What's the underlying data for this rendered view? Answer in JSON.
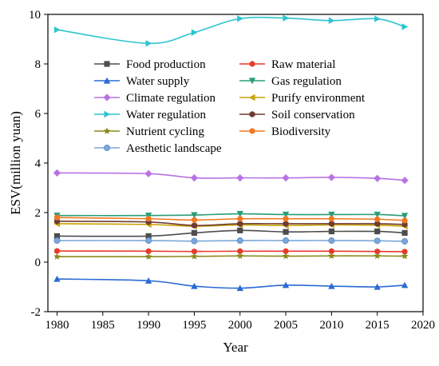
{
  "chart_data": {
    "type": "line",
    "xlabel": "Year",
    "ylabel": "ESV(million yuan)",
    "xlim": [
      1979,
      2020
    ],
    "ylim": [
      -2,
      10
    ],
    "xticks": [
      1980,
      1985,
      1990,
      1995,
      2000,
      2005,
      2010,
      2015,
      2020
    ],
    "yticks": [
      -2,
      0,
      2,
      4,
      6,
      8,
      10
    ],
    "grid": false,
    "legend_position": "upper-left, two columns",
    "x": [
      1980,
      1990,
      1995,
      2000,
      2005,
      2010,
      2015,
      2018
    ],
    "series": [
      {
        "name": "Food production",
        "color": "#4d4d4d",
        "marker": "square",
        "values": [
          1.05,
          1.05,
          1.18,
          1.28,
          1.22,
          1.24,
          1.24,
          1.18
        ]
      },
      {
        "name": "Raw material",
        "color": "#e8392c",
        "marker": "circle",
        "values": [
          0.45,
          0.44,
          0.43,
          0.44,
          0.44,
          0.44,
          0.43,
          0.42
        ]
      },
      {
        "name": "Water supply",
        "color": "#2a6ad3",
        "marker": "triangle-up",
        "values": [
          -0.68,
          -0.75,
          -0.97,
          -1.05,
          -0.93,
          -0.97,
          -1.0,
          -0.93
        ]
      },
      {
        "name": "Gas regulation",
        "color": "#2a9d76",
        "marker": "triangle-down",
        "values": [
          1.88,
          1.88,
          1.9,
          1.95,
          1.92,
          1.92,
          1.92,
          1.87
        ]
      },
      {
        "name": "Climate regulation",
        "color": "#b873e3",
        "marker": "diamond",
        "values": [
          3.6,
          3.57,
          3.4,
          3.4,
          3.4,
          3.42,
          3.38,
          3.3
        ]
      },
      {
        "name": "Purify environment",
        "color": "#c8a200",
        "marker": "triangle-left",
        "values": [
          1.55,
          1.52,
          1.45,
          1.5,
          1.48,
          1.5,
          1.49,
          1.45
        ]
      },
      {
        "name": "Water regulation",
        "color": "#2ec4d0",
        "marker": "triangle-right",
        "values": [
          9.38,
          8.83,
          9.27,
          9.83,
          9.85,
          9.75,
          9.82,
          9.5
        ]
      },
      {
        "name": "Soil conservation",
        "color": "#6e3b32",
        "marker": "hexagon",
        "values": [
          1.65,
          1.62,
          1.48,
          1.55,
          1.55,
          1.55,
          1.55,
          1.52
        ]
      },
      {
        "name": "Nutrient cycling",
        "color": "#8a8a1c",
        "marker": "star",
        "values": [
          0.22,
          0.22,
          0.23,
          0.25,
          0.24,
          0.25,
          0.25,
          0.24
        ]
      },
      {
        "name": "Biodiversity",
        "color": "#f07820",
        "marker": "circle",
        "values": [
          1.8,
          1.75,
          1.7,
          1.75,
          1.75,
          1.75,
          1.73,
          1.68
        ]
      },
      {
        "name": "Aesthetic landscape",
        "color": "#7ba7d9",
        "marker": "circle-half",
        "values": [
          0.87,
          0.87,
          0.85,
          0.87,
          0.87,
          0.87,
          0.86,
          0.84
        ]
      }
    ]
  }
}
